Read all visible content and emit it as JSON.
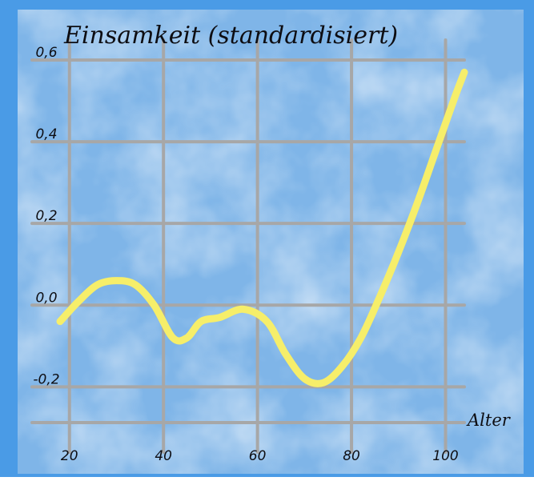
{
  "chart_data": {
    "type": "line",
    "title": "Einsamkeit (standardisiert)",
    "xlabel": "Alter",
    "ylabel": "",
    "xlim": [
      18,
      104
    ],
    "ylim": [
      -0.36,
      0.6
    ],
    "xticks": [
      "20",
      "40",
      "60",
      "80",
      "100"
    ],
    "yticks": [
      "0,6",
      "0,4",
      "0,2",
      "0,0",
      "-0,2"
    ],
    "grid": true,
    "series": [
      {
        "color": "#f6ee6a",
        "x": [
          18,
          22,
          26,
          30,
          34,
          38,
          42,
          45,
          48,
          52,
          57,
          62,
          66,
          70,
          74,
          78,
          82,
          86,
          90,
          94,
          98,
          102,
          104
        ],
        "y": [
          -0.04,
          0.01,
          0.05,
          0.06,
          0.05,
          0.0,
          -0.08,
          -0.08,
          -0.04,
          -0.03,
          -0.01,
          -0.04,
          -0.12,
          -0.18,
          -0.19,
          -0.15,
          -0.08,
          0.02,
          0.13,
          0.25,
          0.38,
          0.51,
          0.57
        ]
      }
    ]
  },
  "colors": {
    "background": "#7fb5e8",
    "frame": "#4a9be6",
    "grid": "#a7a7a7",
    "line": "#f6ee6a",
    "text": "#0d0d12"
  }
}
